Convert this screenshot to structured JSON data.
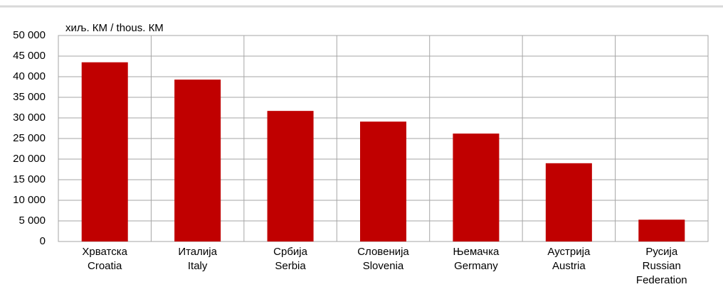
{
  "chart_data": {
    "type": "bar",
    "y_unit_label": "хиљ. КМ / thous. КМ",
    "categories": [
      "Хрватска",
      "Италија",
      "Србија",
      "Словенија",
      "Њемачка",
      "Аустрија",
      "Русија"
    ],
    "categories_en": [
      "Croatia",
      "Italy",
      "Serbia",
      "Slovenia",
      "Germany",
      "Austria",
      "Russian Federation"
    ],
    "values": [
      43500,
      39300,
      31700,
      29100,
      26200,
      19000,
      5300
    ],
    "color": "#c00000",
    "ylim": [
      0,
      50000
    ],
    "yticks": [
      0,
      {
        "value": 5000,
        "label": "5 000"
      },
      {
        "value": 10000,
        "label": "10 000"
      },
      {
        "value": 15000,
        "label": "15 000"
      },
      {
        "value": 20000,
        "label": "20 000"
      },
      {
        "value": 25000,
        "label": "25 000"
      },
      {
        "value": 30000,
        "label": "30 000"
      },
      {
        "value": 35000,
        "label": "35 000"
      },
      {
        "value": 40000,
        "label": "40 000"
      },
      {
        "value": 45000,
        "label": "45 000"
      },
      {
        "value": 50000,
        "label": "50 000"
      }
    ],
    "grid": true
  }
}
